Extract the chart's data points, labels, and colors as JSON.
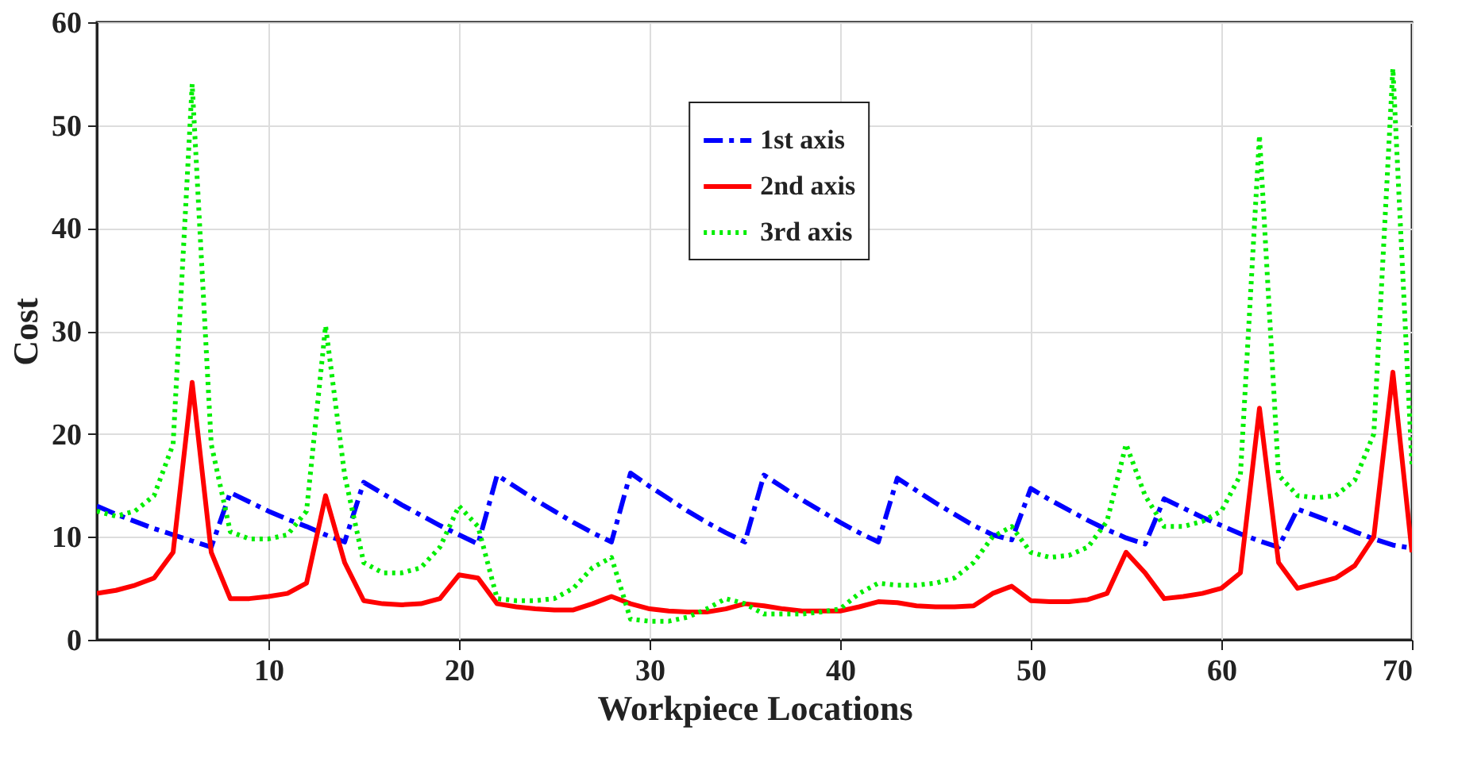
{
  "chart_data": {
    "type": "line",
    "xlabel": "Workpiece Locations",
    "ylabel": "Cost",
    "x": [
      1,
      2,
      3,
      4,
      5,
      6,
      7,
      8,
      9,
      10,
      11,
      12,
      13,
      14,
      15,
      16,
      17,
      18,
      19,
      20,
      21,
      22,
      23,
      24,
      25,
      26,
      27,
      28,
      29,
      30,
      31,
      32,
      33,
      34,
      35,
      36,
      37,
      38,
      39,
      40,
      41,
      42,
      43,
      44,
      45,
      46,
      47,
      48,
      49,
      50,
      51,
      52,
      53,
      54,
      55,
      56,
      57,
      58,
      59,
      60,
      61,
      62,
      63,
      64,
      65,
      66,
      67,
      68,
      69,
      70
    ],
    "xlim": [
      1,
      70
    ],
    "xticks": [
      10,
      20,
      30,
      40,
      50,
      60,
      70
    ],
    "ylim": [
      0,
      60
    ],
    "yticks": [
      0,
      10,
      20,
      30,
      40,
      50,
      60
    ],
    "grid": true,
    "legend": "top",
    "marker": "none",
    "series": [
      {
        "name": "1st axis",
        "color": "#0000ff",
        "line_style": "dashed",
        "values": [
          13,
          12.2,
          11.5,
          10.8,
          10.2,
          9.6,
          9,
          14.3,
          13.4,
          12.5,
          11.7,
          11,
          10.2,
          9.5,
          15.3,
          14.2,
          13.1,
          12.1,
          11.1,
          10.2,
          9.3,
          16,
          14.8,
          13.6,
          12.5,
          11.4,
          10.4,
          9.5,
          16.2,
          14.9,
          13.7,
          12.5,
          11.4,
          10.4,
          9.5,
          16,
          14.8,
          13.6,
          12.5,
          11.4,
          10.4,
          9.5,
          15.7,
          14.5,
          13.3,
          12.2,
          11.1,
          10.2,
          9.7,
          14.7,
          13.6,
          12.6,
          11.6,
          10.7,
          9.9,
          9.3,
          13.7,
          12.8,
          11.9,
          11.1,
          10.3,
          9.6,
          9,
          12.7,
          12,
          11.3,
          10.5,
          9.8,
          9.2,
          8.9
        ]
      },
      {
        "name": "2nd axis",
        "color": "#ff0000",
        "line_style": "solid",
        "values": [
          4.5,
          4.8,
          5.3,
          6,
          8.5,
          25,
          8.5,
          4,
          4,
          4.2,
          4.5,
          5.5,
          14,
          7.5,
          3.8,
          3.5,
          3.4,
          3.5,
          4,
          6.3,
          6,
          3.5,
          3.2,
          3,
          2.9,
          2.9,
          3.5,
          4.2,
          3.5,
          3,
          2.8,
          2.7,
          2.7,
          3,
          3.5,
          3.3,
          3,
          2.8,
          2.8,
          2.8,
          3.2,
          3.7,
          3.6,
          3.3,
          3.2,
          3.2,
          3.3,
          4.5,
          5.2,
          3.8,
          3.7,
          3.7,
          3.9,
          4.5,
          8.5,
          6.5,
          4,
          4.2,
          4.5,
          5,
          6.5,
          22.5,
          7.5,
          5,
          5.5,
          6,
          7.2,
          10,
          26,
          8.5
        ]
      },
      {
        "name": "3rd axis",
        "color": "#00ee00",
        "line_style": "dotted",
        "values": [
          12.5,
          12,
          12.5,
          14,
          19,
          54,
          19,
          10.5,
          9.8,
          9.8,
          10.2,
          12.5,
          30.5,
          16,
          7.5,
          6.5,
          6.5,
          7,
          9,
          13,
          11,
          4,
          3.8,
          3.8,
          4,
          5,
          7,
          8,
          2,
          1.8,
          1.8,
          2.2,
          3,
          4,
          3.5,
          2.5,
          2.5,
          2.5,
          2.7,
          3,
          4.5,
          5.5,
          5.3,
          5.3,
          5.5,
          6,
          7.5,
          10,
          11,
          8.5,
          8,
          8.2,
          9,
          11.5,
          19,
          14,
          11,
          11,
          11.5,
          12.5,
          16,
          49,
          16,
          14,
          13.8,
          14,
          15.5,
          20,
          55.5,
          17
        ]
      }
    ]
  }
}
